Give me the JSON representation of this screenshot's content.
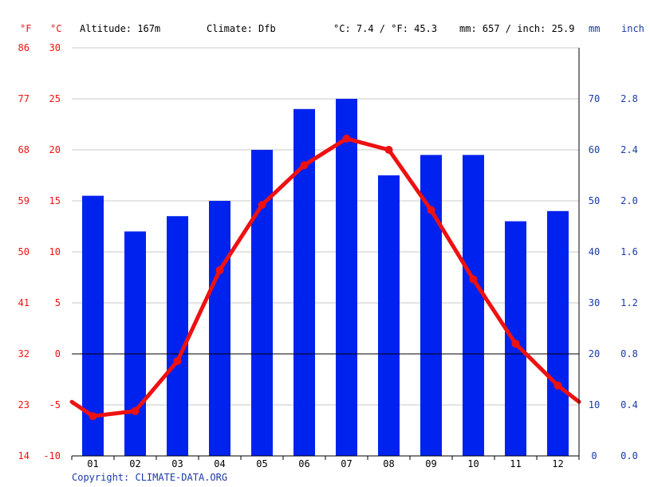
{
  "header": {
    "unit_f": "°F",
    "unit_c": "°C",
    "altitude": "Altitude: 167m",
    "climate": "Climate: Dfb",
    "temp_avg": "°C: 7.4 / °F: 45.3",
    "precip_total": "mm: 657 / inch: 25.9",
    "unit_mm": "mm",
    "unit_inch": "inch"
  },
  "copyright": "Copyright: CLIMATE-DATA.ORG",
  "colors": {
    "temperature": "#ee1111",
    "precipitation": "#0022ee",
    "axis_right": "#1a3aa8",
    "grid": "#c8c8c8",
    "zero_line": "#000000"
  },
  "chart_data": {
    "type": "bar+line",
    "categories": [
      "01",
      "02",
      "03",
      "04",
      "05",
      "06",
      "07",
      "08",
      "09",
      "10",
      "11",
      "12"
    ],
    "series": [
      {
        "kind": "bar",
        "axis": "right",
        "values": [
          51,
          44,
          47,
          50,
          60,
          68,
          70,
          55,
          59,
          59,
          46,
          48
        ]
      },
      {
        "kind": "line",
        "axis": "left",
        "values": [
          -6.1,
          -5.6,
          -0.7,
          8.2,
          14.6,
          18.5,
          21.1,
          20.0,
          14.1,
          7.3,
          1.0,
          -3.1
        ],
        "edge_values": [
          -4.7,
          -4.7
        ]
      }
    ],
    "left_axis_c": {
      "range": [
        -10,
        30
      ],
      "ticks": [
        "-10",
        "-5",
        "0",
        "5",
        "10",
        "15",
        "20",
        "25",
        "30"
      ]
    },
    "left_axis_f": {
      "ticks": [
        "14",
        "23",
        "32",
        "41",
        "50",
        "59",
        "68",
        "77",
        "86"
      ]
    },
    "right_axis_mm": {
      "range": [
        0,
        80
      ],
      "ticks": [
        "0",
        "10",
        "20",
        "30",
        "40",
        "50",
        "60",
        "70"
      ]
    },
    "right_axis_inch": {
      "ticks": [
        "0.0",
        "0.4",
        "0.8",
        "1.2",
        "1.6",
        "2.0",
        "2.4",
        "2.8"
      ]
    },
    "grid": true
  }
}
